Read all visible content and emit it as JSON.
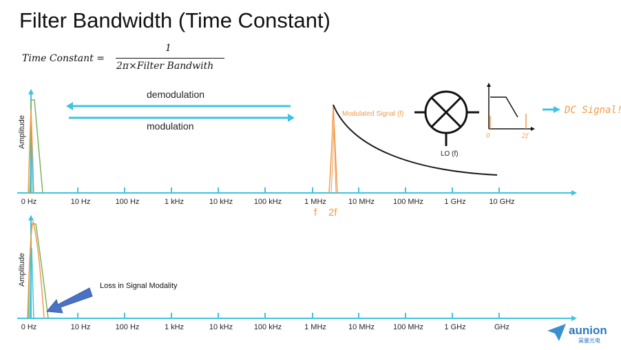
{
  "title": "Filter Bandwidth (Time Constant)",
  "formula": {
    "lhs": "Time Constant =",
    "numerator": "1",
    "denominator": "2π×Filter Bandwith"
  },
  "top_panel": {
    "ylabel": "Amplitude",
    "arrow_left_label": "demodulation",
    "arrow_right_label": "modulation",
    "ticks": [
      "0 Hz",
      "10 Hz",
      "100 Hz",
      "1 kHz",
      "10 kHz",
      "100 kHz",
      "1 MHz",
      "10 MHz",
      "100 MHz",
      "1 GHz",
      "10 GHz"
    ],
    "freq_markers": [
      "f",
      "2f"
    ],
    "modulated_signal_label": "Modulated Signal (f)",
    "lo_label": "LO (f)",
    "filter_axis_labels": [
      "0",
      "2f"
    ],
    "output_label": "DC Signal!"
  },
  "bottom_panel": {
    "ylabel": "Amplitude",
    "annotation": "Loss in Signal Modality",
    "ticks": [
      "0 Hz",
      "10 Hz",
      "100 Hz",
      "1 kHz",
      "10 kHz",
      "100 kHz",
      "1 MHz",
      "10 MHz",
      "100 MHz",
      "1 GHz",
      "GHz"
    ]
  },
  "watermark": {
    "brand": "aunion",
    "subtext": "昊量光电"
  },
  "colors": {
    "axis": "#3ec3e0",
    "orange": "#f29a4a",
    "green": "#7ab35a",
    "blue_arrow": "#4a72c4",
    "curve": "#1a1a1a"
  }
}
